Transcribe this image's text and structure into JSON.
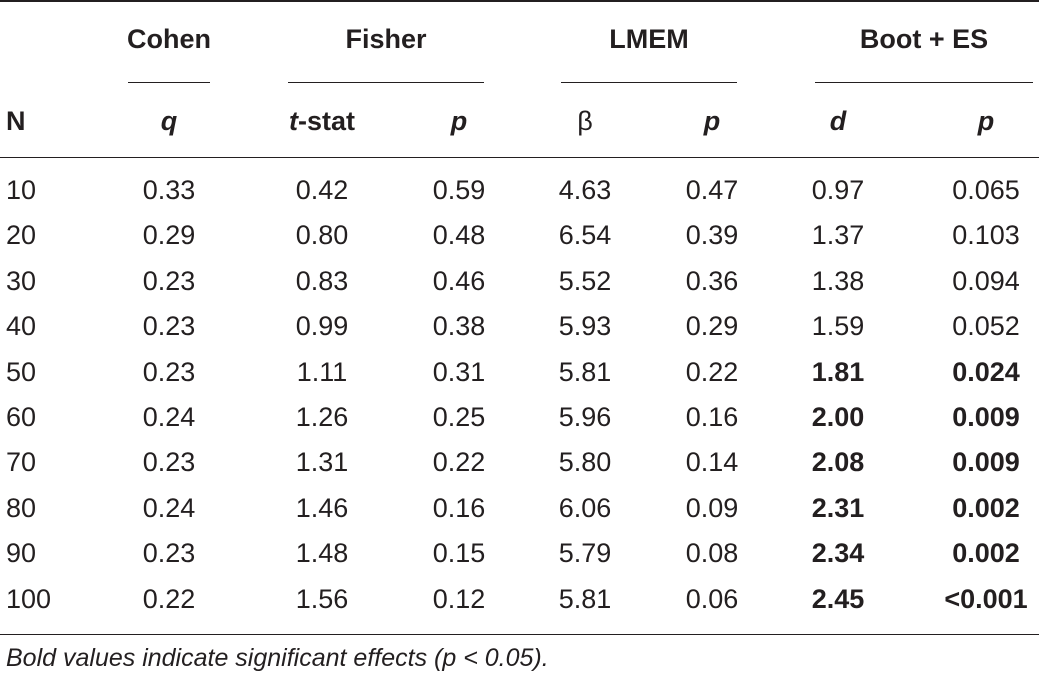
{
  "groups": [
    {
      "label": "Cohen"
    },
    {
      "label": "Fisher"
    },
    {
      "label": "LMEM"
    },
    {
      "label": "Boot + ES"
    }
  ],
  "header": {
    "n": "N",
    "subs": [
      {
        "label": "q",
        "italic": true
      },
      {
        "label": "-stat",
        "prefix_italic": "t",
        "italic": false
      },
      {
        "label": "p",
        "italic": true
      },
      {
        "label": "β",
        "italic": false
      },
      {
        "label": "p",
        "italic": true
      },
      {
        "label": "d",
        "italic": true
      },
      {
        "label": "p",
        "italic": true
      }
    ]
  },
  "rows": [
    {
      "n": "10",
      "cells": [
        "0.33",
        "0.42",
        "0.59",
        "4.63",
        "0.47",
        "0.97",
        "0.065"
      ],
      "bold_boot": false
    },
    {
      "n": "20",
      "cells": [
        "0.29",
        "0.80",
        "0.48",
        "6.54",
        "0.39",
        "1.37",
        "0.103"
      ],
      "bold_boot": false
    },
    {
      "n": "30",
      "cells": [
        "0.23",
        "0.83",
        "0.46",
        "5.52",
        "0.36",
        "1.38",
        "0.094"
      ],
      "bold_boot": false
    },
    {
      "n": "40",
      "cells": [
        "0.23",
        "0.99",
        "0.38",
        "5.93",
        "0.29",
        "1.59",
        "0.052"
      ],
      "bold_boot": false
    },
    {
      "n": "50",
      "cells": [
        "0.23",
        "1.11",
        "0.31",
        "5.81",
        "0.22",
        "1.81",
        "0.024"
      ],
      "bold_boot": true
    },
    {
      "n": "60",
      "cells": [
        "0.24",
        "1.26",
        "0.25",
        "5.96",
        "0.16",
        "2.00",
        "0.009"
      ],
      "bold_boot": true
    },
    {
      "n": "70",
      "cells": [
        "0.23",
        "1.31",
        "0.22",
        "5.80",
        "0.14",
        "2.08",
        "0.009"
      ],
      "bold_boot": true
    },
    {
      "n": "80",
      "cells": [
        "0.24",
        "1.46",
        "0.16",
        "6.06",
        "0.09",
        "2.31",
        "0.002"
      ],
      "bold_boot": true
    },
    {
      "n": "90",
      "cells": [
        "0.23",
        "1.48",
        "0.15",
        "5.79",
        "0.08",
        "2.34",
        "0.002"
      ],
      "bold_boot": true
    },
    {
      "n": "100",
      "cells": [
        "0.22",
        "1.56",
        "0.12",
        "5.81",
        "0.06",
        "2.45",
        "<0.001"
      ],
      "bold_boot": true
    }
  ],
  "footnote": "Bold values indicate significant effects (p < 0.05)."
}
